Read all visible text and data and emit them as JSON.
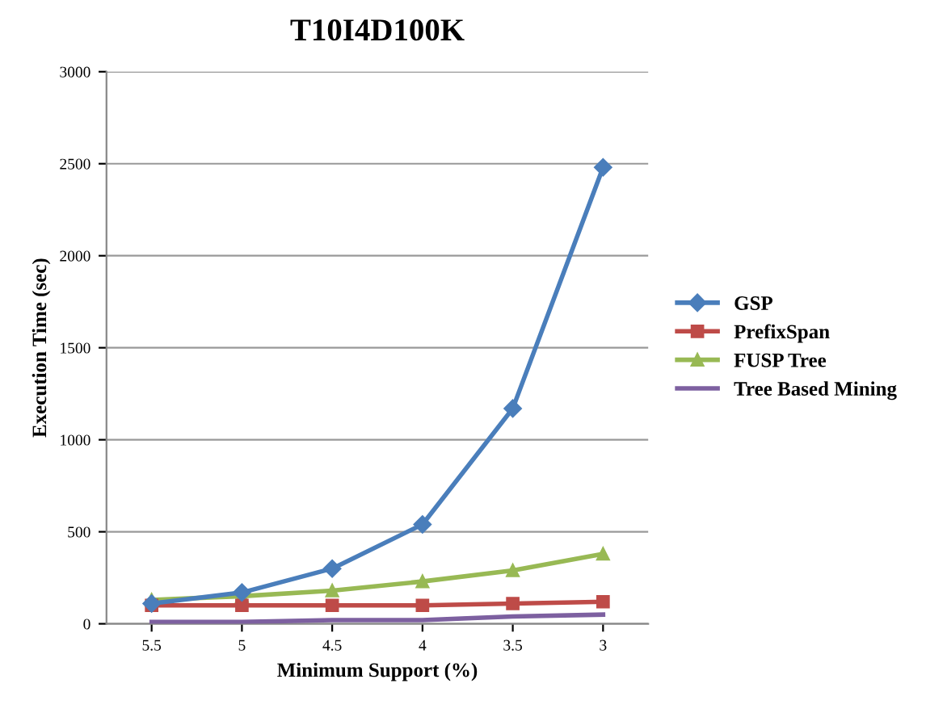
{
  "chart_data": {
    "type": "line",
    "title": "T10I4D100K",
    "xlabel": "Minimum Support (%)",
    "ylabel": "Execution Time (sec)",
    "categories": [
      "5.5",
      "5",
      "4.5",
      "4",
      "3.5",
      "3"
    ],
    "series": [
      {
        "name": "GSP",
        "color": "#4a7ebb",
        "values": [
          110,
          170,
          300,
          540,
          1170,
          2480
        ],
        "marker": "diamond"
      },
      {
        "name": "PrefixSpan",
        "color": "#be4b48",
        "values": [
          100,
          100,
          100,
          100,
          110,
          120
        ],
        "marker": "square"
      },
      {
        "name": "FUSP Tree",
        "color": "#98b954",
        "values": [
          130,
          150,
          180,
          230,
          290,
          380
        ],
        "marker": "triangle"
      },
      {
        "name": "Tree Based Mining",
        "color": "#7d60a0",
        "values": [
          10,
          10,
          20,
          20,
          40,
          50
        ],
        "marker": "none"
      }
    ],
    "ylim": [
      0,
      3000
    ],
    "yticks": [
      0,
      500,
      1000,
      1500,
      2000,
      2500,
      3000
    ],
    "grid": "y",
    "legend": "right"
  }
}
